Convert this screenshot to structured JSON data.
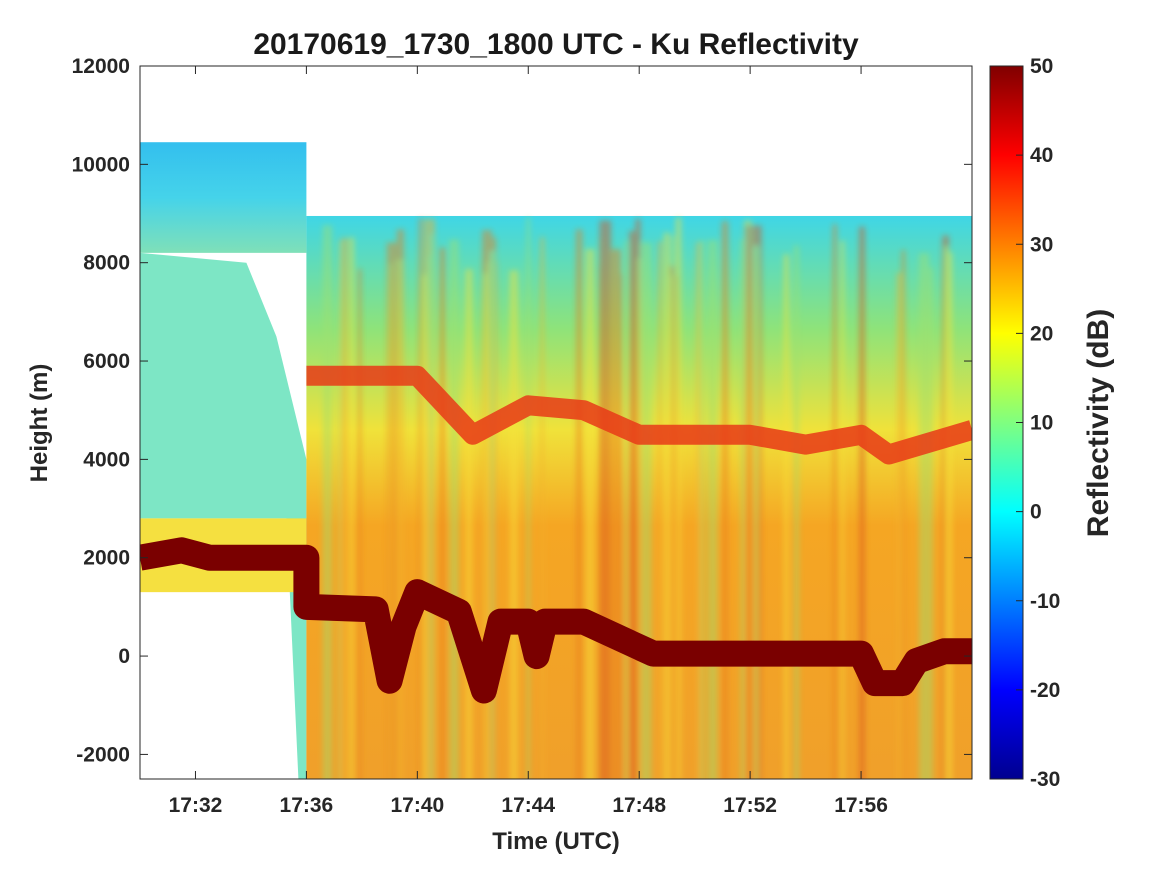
{
  "chart_data": {
    "type": "heatmap",
    "title": "20170619_1730_1800 UTC - Ku Reflectivity",
    "xlabel": "Time (UTC)",
    "ylabel": "Height (m)",
    "x_range": [
      "17:30",
      "18:00"
    ],
    "ylim": [
      -2500,
      12000
    ],
    "x_ticks": [
      "17:32",
      "17:36",
      "17:40",
      "17:44",
      "17:48",
      "17:52",
      "17:56"
    ],
    "y_ticks": [
      -2000,
      0,
      2000,
      4000,
      6000,
      8000,
      10000,
      12000
    ],
    "colorbar": {
      "label": "Reflectivity (dB)",
      "range": [
        -30,
        50
      ],
      "ticks": [
        -30,
        -20,
        -10,
        0,
        10,
        20,
        30,
        40,
        50
      ],
      "colormap": "jet"
    },
    "echo_top_m": [
      {
        "from": "17:30",
        "to": "17:36",
        "value": 10450
      },
      {
        "from": "17:36",
        "to": "18:00",
        "value": 8950
      }
    ],
    "melting_layer_m": [
      {
        "time": "17:36",
        "value": 5700
      },
      {
        "time": "17:40",
        "value": 5700
      },
      {
        "time": "17:42",
        "value": 4500
      },
      {
        "time": "17:44",
        "value": 5100
      },
      {
        "time": "17:46",
        "value": 5000
      },
      {
        "time": "17:48",
        "value": 4500
      },
      {
        "time": "17:52",
        "value": 4500
      },
      {
        "time": "17:54",
        "value": 4300
      },
      {
        "time": "17:56",
        "value": 4500
      },
      {
        "time": "17:57",
        "value": 4100
      },
      {
        "time": "18:00",
        "value": 4600
      }
    ],
    "surface_return_m": [
      {
        "time": "17:30",
        "value": 2000
      },
      {
        "time": "17:31.5",
        "value": 2150
      },
      {
        "time": "17:32.5",
        "value": 2000
      },
      {
        "time": "17:36",
        "value": 2000
      },
      {
        "time": "17:36",
        "value": 1000
      },
      {
        "time": "17:38.5",
        "value": 950
      },
      {
        "time": "17:39",
        "value": -500
      },
      {
        "time": "17:39.5",
        "value": 600
      },
      {
        "time": "17:40",
        "value": 1300
      },
      {
        "time": "17:41.5",
        "value": 900
      },
      {
        "time": "17:42.4",
        "value": -700
      },
      {
        "time": "17:43",
        "value": 700
      },
      {
        "time": "17:44",
        "value": 700
      },
      {
        "time": "17:44.3",
        "value": 0
      },
      {
        "time": "17:44.6",
        "value": 700
      },
      {
        "time": "17:46",
        "value": 700
      },
      {
        "time": "17:48.5",
        "value": 50
      },
      {
        "time": "17:56",
        "value": 50
      },
      {
        "time": "17:56.5",
        "value": -550
      },
      {
        "time": "17:57.5",
        "value": -550
      },
      {
        "time": "17:58",
        "value": -100
      },
      {
        "time": "17:59",
        "value": 100
      },
      {
        "time": "18:00",
        "value": 100
      }
    ]
  }
}
